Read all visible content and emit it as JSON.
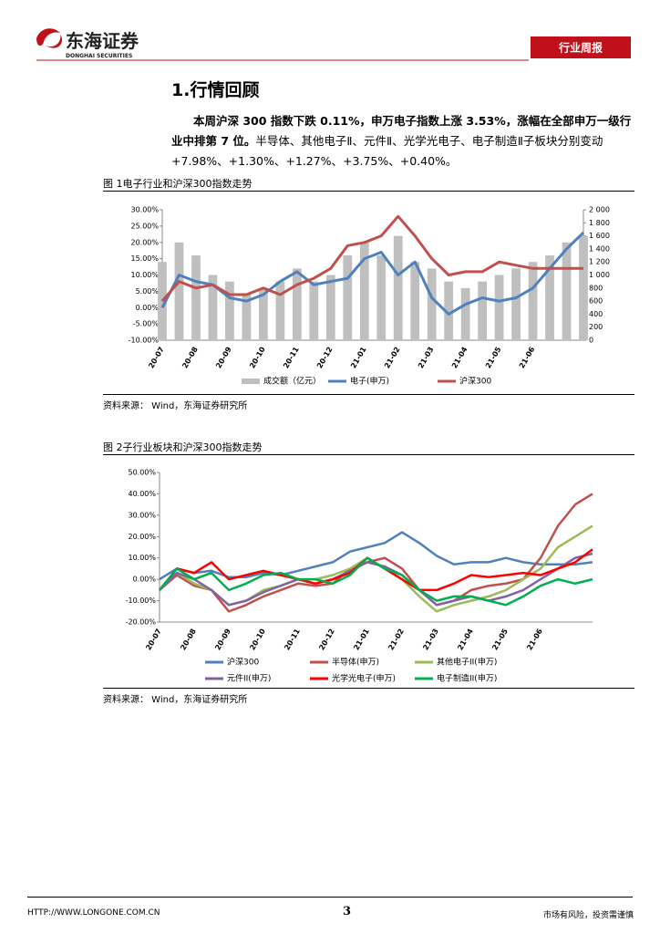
{
  "header": {
    "brand": "东海证券",
    "brand_en": "DONGHAI SECURITIES",
    "tag": "行业周报"
  },
  "section_title": "1.行情回顾",
  "paragraph": {
    "bold": "本周沪深 300 指数下跌 0.11%，申万电子指数上涨 3.53%，涨幅在全部申万一级行业中排第 7 位。",
    "text": "半导体、其他电子Ⅱ、元件Ⅱ、光学光电子、电子制造Ⅱ子板块分别变动+7.98%、+1.30%、+1.27%、+3.75%、+0.40%。"
  },
  "figures": [
    {
      "caption": "图 1电子行业和沪深300指数走势",
      "source": "资料来源： Wind，东海证券研究所"
    },
    {
      "caption": "图 2子行业板块和沪深300指数走势",
      "source": "资料来源： Wind，东海证券研究所"
    }
  ],
  "chart_data": [
    {
      "type": "combo",
      "categories": [
        "20-07",
        null,
        "20-08",
        null,
        "20-09",
        null,
        "20-10",
        null,
        "20-11",
        null,
        "20-12",
        null,
        "21-01",
        null,
        "21-02",
        null,
        "21-03",
        null,
        "21-04",
        null,
        "21-05",
        null,
        "21-06",
        null,
        null,
        null
      ],
      "ylim": [
        -10,
        30
      ],
      "yticks": [
        {
          "value": -10,
          "label": "-10.00%"
        },
        {
          "value": -5,
          "label": "-5.00%"
        },
        {
          "value": 0,
          "label": "0.00%"
        },
        {
          "value": 5,
          "label": "5.00%"
        },
        {
          "value": 10,
          "label": "10.00%"
        },
        {
          "value": 15,
          "label": "15.00%"
        },
        {
          "value": 20,
          "label": "20.00%"
        },
        {
          "value": 25,
          "label": "25.00%"
        },
        {
          "value": 30,
          "label": "30.00%"
        }
      ],
      "y2lim": [
        0,
        2000
      ],
      "y2ticks": [
        0,
        200,
        400,
        600,
        800,
        {
          "value": 1000,
          "label": "1 000"
        },
        {
          "value": 1200,
          "label": "1 200"
        },
        {
          "value": 1400,
          "label": "1 400"
        },
        {
          "value": 1600,
          "label": "1 600"
        },
        {
          "value": 1800,
          "label": "1 800"
        },
        {
          "value": 2000,
          "label": "2 000"
        }
      ],
      "series": [
        {
          "name": "成交额（亿元）",
          "type": "bar",
          "axis": "y2",
          "color": "#bfbfbf",
          "values": [
            1200,
            1500,
            1300,
            1000,
            900,
            700,
            800,
            900,
            1100,
            900,
            1000,
            1300,
            1500,
            1300,
            1600,
            1200,
            1100,
            900,
            800,
            900,
            1000,
            1100,
            1200,
            1300,
            1500,
            1600
          ]
        },
        {
          "name": "电子(申万)",
          "type": "line",
          "color": "#4f81bd",
          "values": [
            0,
            10,
            8,
            7,
            3,
            2,
            4,
            8,
            11,
            7,
            8,
            9,
            15,
            17,
            10,
            14,
            3,
            -2,
            1,
            3,
            2,
            3,
            6,
            12,
            18,
            23
          ]
        },
        {
          "name": "沪深300",
          "type": "line",
          "color": "#c0504d",
          "values": [
            2,
            8,
            6,
            7,
            4,
            4,
            6,
            4,
            7,
            9,
            12,
            19,
            20,
            22,
            28,
            22,
            15,
            10,
            11,
            11,
            14,
            13,
            12,
            12,
            12,
            12
          ]
        }
      ]
    },
    {
      "type": "line",
      "categories": [
        "20-07",
        null,
        "20-08",
        null,
        "20-09",
        null,
        "20-10",
        null,
        "20-11",
        null,
        "20-12",
        null,
        "21-01",
        null,
        "21-02",
        null,
        "21-03",
        null,
        "21-04",
        null,
        "21-05",
        null,
        "21-06",
        null,
        null,
        null
      ],
      "ylim": [
        -20,
        50
      ],
      "yticks": [
        {
          "value": -20,
          "label": "-20.00%"
        },
        {
          "value": -10,
          "label": "-10.00%"
        },
        {
          "value": 0,
          "label": "0.00%"
        },
        {
          "value": 10,
          "label": "10.00%"
        },
        {
          "value": 20,
          "label": "20.00%"
        },
        {
          "value": 30,
          "label": "30.00%"
        },
        {
          "value": 40,
          "label": "40.00%"
        },
        {
          "value": 50,
          "label": "50.00%"
        }
      ],
      "series": [
        {
          "name": "沪深300",
          "color": "#4f81bd",
          "values": [
            0,
            5,
            3,
            4,
            1,
            1,
            3,
            2,
            4,
            6,
            8,
            13,
            15,
            17,
            22,
            17,
            11,
            7,
            8,
            8,
            10,
            8,
            7,
            7,
            7,
            8
          ]
        },
        {
          "name": "半导体(申万)",
          "color": "#c0504d",
          "values": [
            -5,
            2,
            -3,
            -5,
            -15,
            -12,
            -8,
            -5,
            -2,
            -3,
            -2,
            5,
            8,
            10,
            5,
            -5,
            -12,
            -10,
            -5,
            -3,
            -2,
            0,
            10,
            25,
            35,
            40
          ]
        },
        {
          "name": "其他电子II(申万)",
          "color": "#9bbb59",
          "values": [
            -5,
            3,
            -2,
            -5,
            -12,
            -10,
            -5,
            -3,
            0,
            0,
            2,
            5,
            10,
            5,
            0,
            -8,
            -15,
            -12,
            -10,
            -8,
            -5,
            0,
            5,
            15,
            20,
            25
          ]
        },
        {
          "name": "元件II(申万)",
          "color": "#8064a2",
          "values": [
            -5,
            3,
            0,
            -5,
            -12,
            -10,
            -6,
            -3,
            0,
            -2,
            0,
            4,
            8,
            6,
            2,
            -5,
            -12,
            -10,
            -8,
            -10,
            -8,
            -5,
            0,
            5,
            10,
            12
          ]
        },
        {
          "name": "光学光电子(申万)",
          "color": "#ff0000",
          "values": [
            -5,
            5,
            3,
            8,
            0,
            2,
            4,
            2,
            0,
            -2,
            0,
            3,
            10,
            5,
            0,
            -5,
            -5,
            -2,
            2,
            1,
            2,
            3,
            2,
            5,
            8,
            14
          ]
        },
        {
          "name": "电子制造II(申万)",
          "color": "#00b050",
          "values": [
            -5,
            5,
            0,
            3,
            -5,
            -2,
            2,
            3,
            0,
            0,
            -2,
            2,
            10,
            5,
            2,
            -5,
            -10,
            -8,
            -8,
            -10,
            -12,
            -8,
            -3,
            0,
            -2,
            0
          ]
        }
      ]
    }
  ],
  "footer": {
    "url": "HTTP://WWW.LONGONE.COM.CN",
    "page": "3",
    "disclaimer": "市场有风险，投资需谨慎"
  }
}
